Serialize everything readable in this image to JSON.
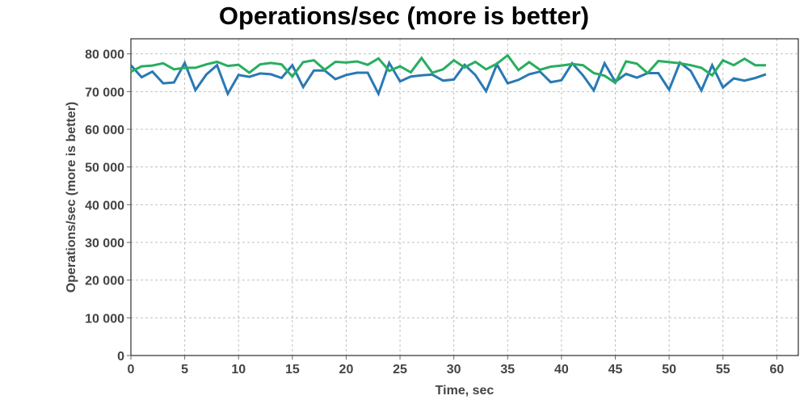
{
  "chart_data": {
    "type": "line",
    "title": "Operations/sec (more is better)",
    "xlabel": "Time, sec",
    "ylabel": "Operations/sec (more is better)",
    "xlim": [
      0,
      62
    ],
    "ylim": [
      0,
      84000
    ],
    "x_ticks": [
      0,
      5,
      10,
      15,
      20,
      25,
      30,
      35,
      40,
      45,
      50,
      55,
      60
    ],
    "y_ticks": [
      0,
      10000,
      20000,
      30000,
      40000,
      50000,
      60000,
      70000,
      80000
    ],
    "y_tick_labels": [
      "0",
      "10 000",
      "20 000",
      "30 000",
      "40 000",
      "50 000",
      "60 000",
      "70 000",
      "80 000"
    ],
    "grid": true,
    "x": [
      0,
      1,
      2,
      3,
      4,
      5,
      6,
      7,
      8,
      9,
      10,
      11,
      12,
      13,
      14,
      15,
      16,
      17,
      18,
      19,
      20,
      21,
      22,
      23,
      24,
      25,
      26,
      27,
      28,
      29,
      30,
      31,
      32,
      33,
      34,
      35,
      36,
      37,
      38,
      39,
      40,
      41,
      42,
      43,
      44,
      45,
      46,
      47,
      48,
      49,
      50,
      51,
      52,
      53,
      54,
      55,
      56,
      57,
      58,
      59
    ],
    "series": [
      {
        "color": "#2979b5",
        "values": [
          77000,
          73800,
          75300,
          72200,
          72400,
          77600,
          70400,
          74500,
          77000,
          69400,
          74400,
          73900,
          74800,
          74600,
          73600,
          77000,
          71200,
          75600,
          75600,
          73300,
          74400,
          75000,
          75000,
          69400,
          77600,
          72700,
          74000,
          74300,
          74500,
          72900,
          73200,
          77100,
          74400,
          70100,
          77200,
          72200,
          73100,
          74600,
          75300,
          72500,
          73000,
          77500,
          74300,
          70300,
          77500,
          72600,
          74700,
          73700,
          74900,
          74900,
          70500,
          77700,
          75500,
          70300,
          77000,
          71100,
          73500,
          72900,
          73600,
          74600
        ]
      },
      {
        "color": "#27ae60",
        "values": [
          75300,
          76700,
          76900,
          77500,
          75900,
          76300,
          76300,
          77200,
          77900,
          76800,
          77100,
          75000,
          77200,
          77600,
          77200,
          74000,
          77800,
          78300,
          75800,
          77900,
          77700,
          78000,
          77100,
          78800,
          75500,
          76700,
          75100,
          78900,
          75000,
          75900,
          78300,
          76400,
          77900,
          75900,
          77400,
          79600,
          75700,
          77800,
          75800,
          76600,
          76900,
          77300,
          77000,
          74900,
          74200,
          72300,
          78000,
          77400,
          74900,
          78100,
          77800,
          77500,
          77000,
          76300,
          74300,
          78300,
          77000,
          78700,
          77000,
          77000
        ]
      }
    ]
  }
}
